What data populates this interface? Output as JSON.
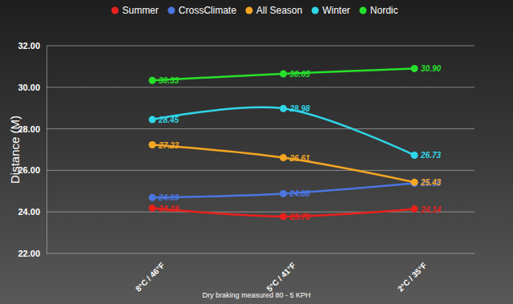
{
  "chart_data": {
    "type": "line",
    "legend": "top",
    "grid": true,
    "data_labels": true,
    "marker": "circle",
    "y_label": "Distance (M)",
    "caption": "Dry braking measured 80 - 5 KPH",
    "categories": [
      "8°C / 46°F",
      "5°C / 41°F",
      "2°C / 35°F"
    ],
    "ylim": [
      22,
      32
    ],
    "yticks": [
      {
        "value": 22,
        "label": "22.00"
      },
      {
        "value": 24,
        "label": "24.00"
      },
      {
        "value": 26,
        "label": "26.00"
      },
      {
        "value": 28,
        "label": "28.00"
      },
      {
        "value": 30,
        "label": "30.00"
      },
      {
        "value": 32,
        "label": "32.00"
      }
    ],
    "series": [
      {
        "name": "Summer",
        "color": "#e8201c",
        "values": [
          24.18,
          23.78,
          24.14
        ],
        "value_labels": [
          "24.18",
          "23.78",
          "24.14"
        ]
      },
      {
        "name": "CrossClimate",
        "color": "#4a76e0",
        "values": [
          24.69,
          24.88,
          25.38
        ],
        "value_labels": [
          "24.69",
          "24.88",
          "25.38"
        ]
      },
      {
        "name": "All Season",
        "color": "#f5a623",
        "values": [
          27.23,
          26.61,
          25.43
        ],
        "value_labels": [
          "27.23",
          "26.61",
          "25.43"
        ]
      },
      {
        "name": "Winter",
        "color": "#2fd6e8",
        "values": [
          28.45,
          28.98,
          26.73
        ],
        "value_labels": [
          "28.45",
          "28.98",
          "26.73"
        ]
      },
      {
        "name": "Nordic",
        "color": "#27e02a",
        "values": [
          30.33,
          30.65,
          30.9
        ],
        "value_labels": [
          "30.33",
          "30.65",
          "30.90"
        ]
      }
    ]
  }
}
